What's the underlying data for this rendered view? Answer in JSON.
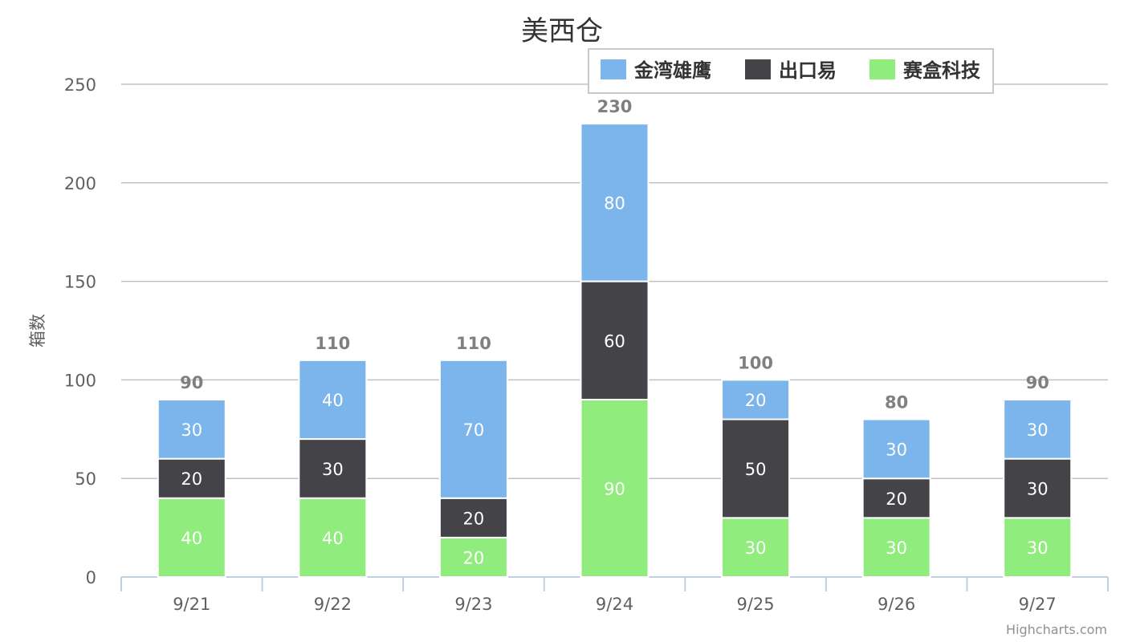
{
  "chart_data": {
    "type": "bar",
    "stacked": true,
    "title": "美西仓",
    "ylabel": "箱数",
    "xlabel": "",
    "categories": [
      "9/21",
      "9/22",
      "9/23",
      "9/24",
      "9/25",
      "9/26",
      "9/27"
    ],
    "series": [
      {
        "name": "赛盒科技",
        "color": "#90ed7d",
        "values": [
          40,
          40,
          20,
          90,
          30,
          30,
          30
        ]
      },
      {
        "name": "出口易",
        "color": "#434348",
        "values": [
          20,
          30,
          20,
          60,
          50,
          20,
          30
        ]
      },
      {
        "name": "金湾雄鹰",
        "color": "#7cb5ec",
        "values": [
          30,
          40,
          70,
          80,
          20,
          30,
          30
        ]
      }
    ],
    "totals": [
      90,
      110,
      110,
      230,
      100,
      80,
      90
    ],
    "ylim": [
      0,
      250
    ],
    "yticks": [
      0,
      50,
      100,
      150,
      200,
      250
    ],
    "legend_order": [
      "金湾雄鹰",
      "出口易",
      "赛盒科技"
    ],
    "legend_position": "top-right",
    "grid": true
  },
  "credits": "Highcharts.com"
}
